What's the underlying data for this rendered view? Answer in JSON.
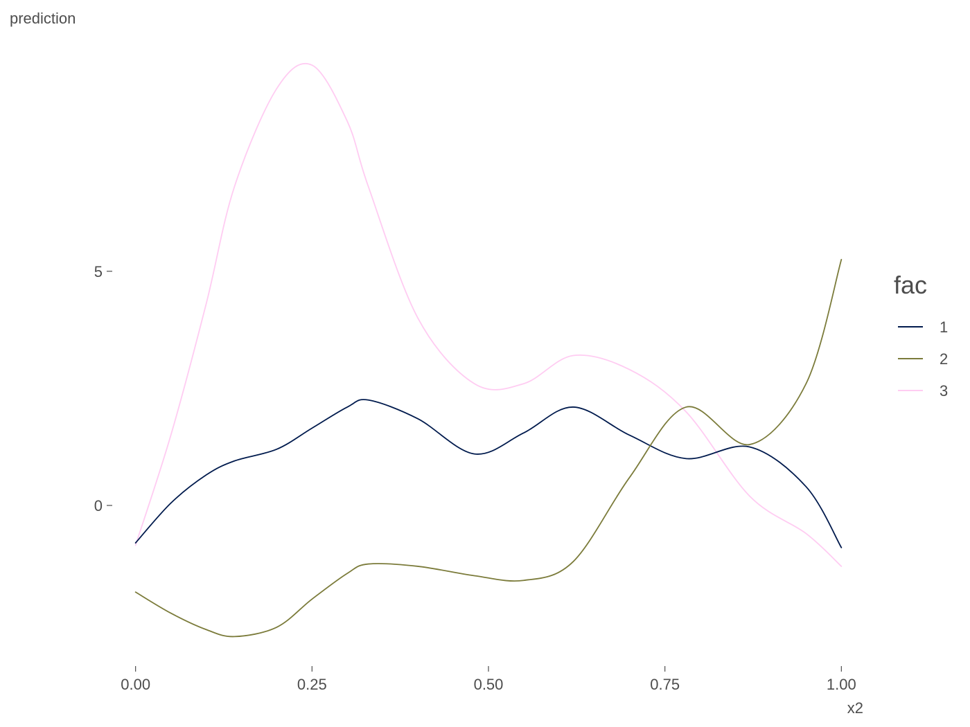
{
  "chart_data": {
    "type": "line",
    "xlabel": "x2",
    "ylabel": "prediction",
    "xlim": [
      -0.035,
      1.035
    ],
    "ylim": [
      -3.4,
      10.2
    ],
    "x_ticks": [
      0.0,
      0.25,
      0.5,
      0.75,
      1.0
    ],
    "x_tick_labels": [
      "0.00",
      "0.25",
      "0.50",
      "0.75",
      "1.00"
    ],
    "y_ticks": [
      0,
      5
    ],
    "y_tick_labels": [
      "0",
      "5"
    ],
    "grid": false,
    "legend": {
      "title": "fac",
      "position": "right"
    },
    "x": [
      0.0,
      0.05,
      0.1,
      0.14,
      0.2,
      0.25,
      0.3,
      0.33,
      0.4,
      0.48,
      0.55,
      0.62,
      0.7,
      0.78,
      0.87,
      0.95,
      1.0
    ],
    "series": [
      {
        "name": "1",
        "color": "#001a4d",
        "values": [
          -0.8,
          0.05,
          0.65,
          0.95,
          1.2,
          1.65,
          2.1,
          2.25,
          1.85,
          1.1,
          1.55,
          2.1,
          1.5,
          1.0,
          1.25,
          0.4,
          -0.9
        ]
      },
      {
        "name": "2",
        "color": "#7b7b3a",
        "values": [
          -1.85,
          -2.3,
          -2.65,
          -2.8,
          -2.6,
          -2.0,
          -1.45,
          -1.25,
          -1.3,
          -1.5,
          -1.6,
          -1.2,
          0.6,
          2.1,
          1.3,
          2.6,
          5.25
        ]
      },
      {
        "name": "3",
        "color": "#ffccf2",
        "values": [
          -0.85,
          1.5,
          4.3,
          6.8,
          8.9,
          9.4,
          8.2,
          6.8,
          4.0,
          2.6,
          2.6,
          3.2,
          2.9,
          2.0,
          0.2,
          -0.6,
          -1.3
        ]
      }
    ]
  }
}
